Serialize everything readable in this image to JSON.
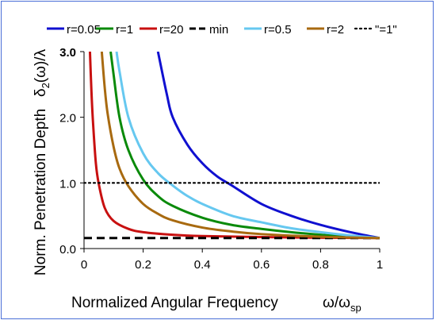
{
  "chart_data": {
    "type": "line",
    "xlabel": "Normalized Angular Frequency",
    "xlabel_symbol_main": "ω/ω",
    "xlabel_symbol_sub": "sp",
    "ylabel": "Norm. Penetration Depth",
    "ylabel_symbol_main": "δ",
    "ylabel_symbol_sub": "2",
    "ylabel_symbol_rest": "(ω)/λ",
    "xlim": [
      0,
      1
    ],
    "ylim": [
      0,
      3
    ],
    "x_ticks": [
      0,
      0.2,
      0.4,
      0.6,
      0.8,
      1
    ],
    "x_tick_labels": [
      "0",
      "0.2",
      "0.4",
      "0.6",
      "0.8",
      "1"
    ],
    "y_ticks": [
      0,
      1,
      2,
      3
    ],
    "y_tick_labels": [
      "0.0",
      "1.0",
      "2.0",
      "3.0"
    ],
    "grid": false,
    "legend_position": "top",
    "series": [
      {
        "name": "r=0.05",
        "color": "#1010d0",
        "style": "solid",
        "x": [
          0.25,
          0.28,
          0.3,
          0.35,
          0.4,
          0.45,
          0.5,
          0.6,
          0.7,
          0.8,
          0.9,
          1.0
        ],
        "y": [
          3.0,
          2.35,
          2.0,
          1.58,
          1.3,
          1.1,
          0.96,
          0.68,
          0.5,
          0.36,
          0.25,
          0.16
        ]
      },
      {
        "name": "r=1",
        "color": "#0a8a0a",
        "style": "solid",
        "x": [
          0.09,
          0.1,
          0.12,
          0.15,
          0.2,
          0.25,
          0.3,
          0.4,
          0.5,
          0.6,
          0.7,
          0.8,
          0.9,
          1.0
        ],
        "y": [
          3.0,
          2.65,
          2.0,
          1.5,
          1.05,
          0.8,
          0.65,
          0.47,
          0.36,
          0.3,
          0.25,
          0.21,
          0.18,
          0.16
        ]
      },
      {
        "name": "r=20",
        "color": "#c81010",
        "style": "solid",
        "x": [
          0.02,
          0.025,
          0.03,
          0.04,
          0.05,
          0.07,
          0.1,
          0.15,
          0.2,
          0.3,
          0.4,
          0.6,
          0.8,
          1.0
        ],
        "y": [
          3.0,
          2.4,
          1.95,
          1.3,
          0.98,
          0.62,
          0.42,
          0.3,
          0.25,
          0.21,
          0.19,
          0.175,
          0.165,
          0.16
        ]
      },
      {
        "name": "min",
        "color": "#000000",
        "style": "dashed",
        "x": [
          0,
          1
        ],
        "y": [
          0.16,
          0.16
        ]
      },
      {
        "name": "r=0.5",
        "color": "#66c8f0",
        "style": "solid",
        "x": [
          0.11,
          0.12,
          0.15,
          0.2,
          0.25,
          0.3,
          0.35,
          0.4,
          0.5,
          0.6,
          0.7,
          0.8,
          0.9,
          1.0
        ],
        "y": [
          3.0,
          2.7,
          2.0,
          1.45,
          1.15,
          0.96,
          0.8,
          0.68,
          0.5,
          0.4,
          0.31,
          0.25,
          0.2,
          0.16
        ]
      },
      {
        "name": "r=2",
        "color": "#a86a10",
        "style": "solid",
        "x": [
          0.06,
          0.07,
          0.08,
          0.1,
          0.12,
          0.15,
          0.2,
          0.25,
          0.3,
          0.4,
          0.5,
          0.6,
          0.8,
          1.0
        ],
        "y": [
          3.0,
          2.45,
          2.05,
          1.55,
          1.22,
          0.95,
          0.68,
          0.53,
          0.43,
          0.32,
          0.26,
          0.22,
          0.18,
          0.16
        ]
      },
      {
        "name": "\"=1\"",
        "color": "#000000",
        "style": "dotted",
        "x": [
          0,
          1
        ],
        "y": [
          1.0,
          1.0
        ]
      }
    ]
  }
}
